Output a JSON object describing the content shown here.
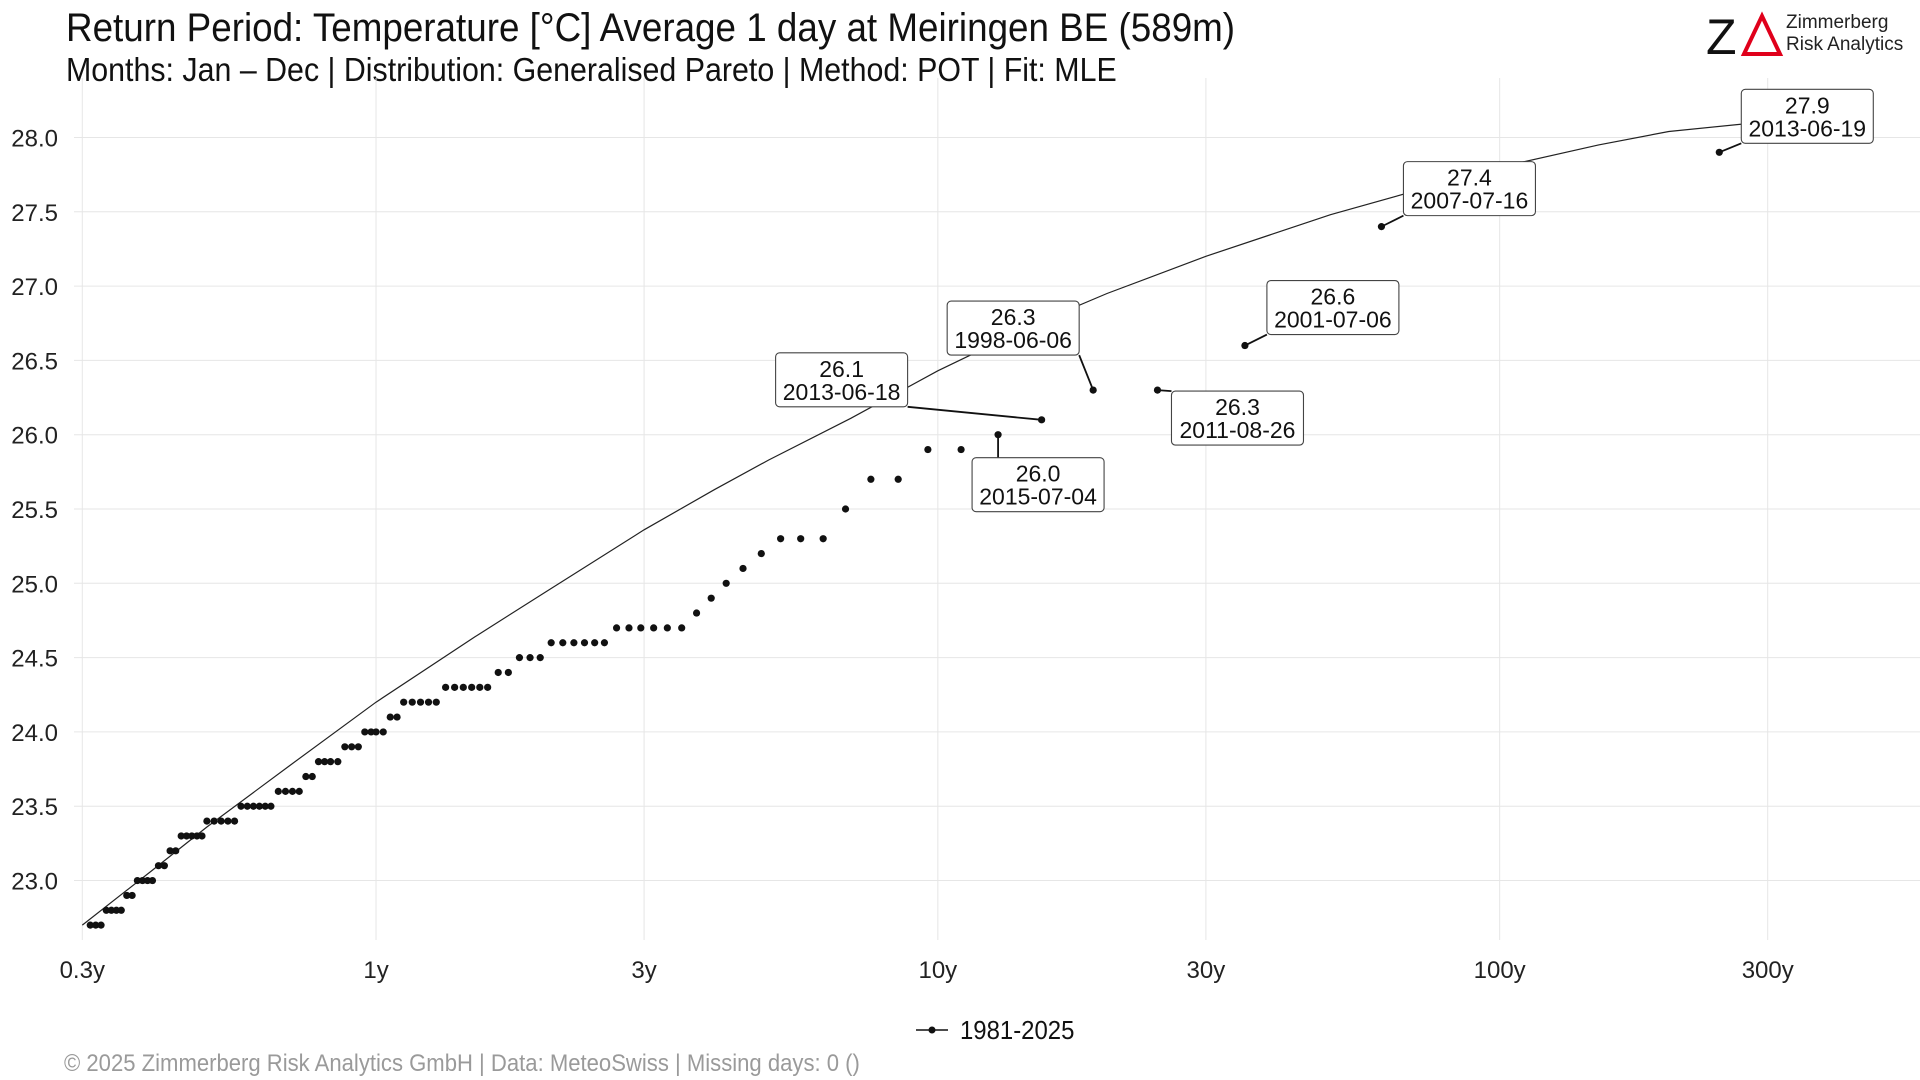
{
  "header": {
    "title": "Return Period: Temperature [°C] Average 1 day at Meiringen  BE (589m)",
    "subtitle": "Months: Jan – Dec | Distribution: Generalised Pareto | Method: POT | Fit: MLE"
  },
  "logo": {
    "mark": "ZΔ",
    "line1": "Zimmerberg",
    "line2": "Risk Analytics",
    "accent_color": "#e0001b"
  },
  "footer": {
    "text": "©  2025 Zimmerberg Risk Analytics GmbH | Data: MeteoSwiss | Missing days: 0 ()"
  },
  "legend": {
    "label": "1981-2025"
  },
  "chart_data": {
    "type": "scatter",
    "x_scale": "log",
    "xlim": [
      0.29,
      560
    ],
    "ylim": [
      22.6,
      28.4
    ],
    "grid": true,
    "legend_position": "bottom",
    "x_ticks": [
      {
        "value": 0.3,
        "label": "0.3y"
      },
      {
        "value": 1,
        "label": "1y"
      },
      {
        "value": 3,
        "label": "3y"
      },
      {
        "value": 10,
        "label": "10y"
      },
      {
        "value": 30,
        "label": "30y"
      },
      {
        "value": 100,
        "label": "100y"
      },
      {
        "value": 300,
        "label": "300y"
      }
    ],
    "y_ticks": [
      {
        "value": 23.0,
        "label": "23.0"
      },
      {
        "value": 23.5,
        "label": "23.5"
      },
      {
        "value": 24.0,
        "label": "24.0"
      },
      {
        "value": 24.5,
        "label": "24.5"
      },
      {
        "value": 25.0,
        "label": "25.0"
      },
      {
        "value": 25.5,
        "label": "25.5"
      },
      {
        "value": 26.0,
        "label": "26.0"
      },
      {
        "value": 26.5,
        "label": "26.5"
      },
      {
        "value": 27.0,
        "label": "27.0"
      },
      {
        "value": 27.5,
        "label": "27.5"
      },
      {
        "value": 28.0,
        "label": "28.0"
      }
    ],
    "fit_curve": [
      [
        0.3,
        22.7
      ],
      [
        0.4,
        23.07
      ],
      [
        0.5,
        23.36
      ],
      [
        0.7,
        23.77
      ],
      [
        1.0,
        24.2
      ],
      [
        1.5,
        24.64
      ],
      [
        2.0,
        24.94
      ],
      [
        3.0,
        25.36
      ],
      [
        4.0,
        25.63
      ],
      [
        5.0,
        25.83
      ],
      [
        7.0,
        26.11
      ],
      [
        10.0,
        26.43
      ],
      [
        15.0,
        26.75
      ],
      [
        20.0,
        26.95
      ],
      [
        30.0,
        27.2
      ],
      [
        50.0,
        27.48
      ],
      [
        100.0,
        27.8
      ],
      [
        150.0,
        27.95
      ],
      [
        200.0,
        28.04
      ],
      [
        270.0,
        28.09
      ]
    ],
    "series": [
      {
        "name": "1981-2025",
        "color": "#111111",
        "points": [
          [
            0.31,
            22.7
          ],
          [
            0.317,
            22.7
          ],
          [
            0.324,
            22.7
          ],
          [
            0.331,
            22.8
          ],
          [
            0.338,
            22.8
          ],
          [
            0.345,
            22.8
          ],
          [
            0.352,
            22.8
          ],
          [
            0.36,
            22.9
          ],
          [
            0.368,
            22.9
          ],
          [
            0.376,
            23.0
          ],
          [
            0.384,
            23.0
          ],
          [
            0.392,
            23.0
          ],
          [
            0.4,
            23.0
          ],
          [
            0.41,
            23.1
          ],
          [
            0.42,
            23.1
          ],
          [
            0.43,
            23.2
          ],
          [
            0.44,
            23.2
          ],
          [
            0.45,
            23.3
          ],
          [
            0.46,
            23.3
          ],
          [
            0.47,
            23.3
          ],
          [
            0.48,
            23.3
          ],
          [
            0.49,
            23.3
          ],
          [
            0.5,
            23.4
          ],
          [
            0.515,
            23.4
          ],
          [
            0.53,
            23.4
          ],
          [
            0.545,
            23.4
          ],
          [
            0.56,
            23.4
          ],
          [
            0.575,
            23.5
          ],
          [
            0.59,
            23.5
          ],
          [
            0.605,
            23.5
          ],
          [
            0.62,
            23.5
          ],
          [
            0.635,
            23.5
          ],
          [
            0.65,
            23.5
          ],
          [
            0.67,
            23.6
          ],
          [
            0.69,
            23.6
          ],
          [
            0.71,
            23.6
          ],
          [
            0.73,
            23.6
          ],
          [
            0.75,
            23.7
          ],
          [
            0.77,
            23.7
          ],
          [
            0.79,
            23.8
          ],
          [
            0.81,
            23.8
          ],
          [
            0.83,
            23.8
          ],
          [
            0.855,
            23.8
          ],
          [
            0.88,
            23.9
          ],
          [
            0.905,
            23.9
          ],
          [
            0.93,
            23.9
          ],
          [
            0.955,
            24.0
          ],
          [
            0.98,
            24.0
          ],
          [
            1.0,
            24.0
          ],
          [
            1.03,
            24.0
          ],
          [
            1.06,
            24.1
          ],
          [
            1.09,
            24.1
          ],
          [
            1.12,
            24.2
          ],
          [
            1.16,
            24.2
          ],
          [
            1.2,
            24.2
          ],
          [
            1.24,
            24.2
          ],
          [
            1.28,
            24.2
          ],
          [
            1.33,
            24.3
          ],
          [
            1.38,
            24.3
          ],
          [
            1.43,
            24.3
          ],
          [
            1.48,
            24.3
          ],
          [
            1.53,
            24.3
          ],
          [
            1.58,
            24.3
          ],
          [
            1.65,
            24.4
          ],
          [
            1.72,
            24.4
          ],
          [
            1.8,
            24.5
          ],
          [
            1.88,
            24.5
          ],
          [
            1.96,
            24.5
          ],
          [
            2.05,
            24.6
          ],
          [
            2.15,
            24.6
          ],
          [
            2.25,
            24.6
          ],
          [
            2.35,
            24.6
          ],
          [
            2.45,
            24.6
          ],
          [
            2.55,
            24.6
          ],
          [
            2.68,
            24.7
          ],
          [
            2.82,
            24.7
          ],
          [
            2.96,
            24.7
          ],
          [
            3.12,
            24.7
          ],
          [
            3.3,
            24.7
          ],
          [
            3.5,
            24.7
          ],
          [
            3.72,
            24.8
          ],
          [
            3.95,
            24.9
          ],
          [
            4.2,
            25.0
          ],
          [
            4.5,
            25.1
          ],
          [
            4.85,
            25.2
          ],
          [
            5.25,
            25.3
          ],
          [
            5.7,
            25.3
          ],
          [
            6.25,
            25.3
          ],
          [
            6.85,
            25.5
          ],
          [
            7.6,
            25.7
          ],
          [
            8.5,
            25.7
          ],
          [
            9.6,
            25.9
          ],
          [
            11.0,
            25.9
          ],
          [
            12.8,
            26.0
          ],
          [
            15.3,
            26.1
          ],
          [
            18.9,
            26.3
          ],
          [
            24.6,
            26.3
          ],
          [
            35.2,
            26.6
          ],
          [
            61.6,
            27.4
          ],
          [
            246.0,
            27.9
          ]
        ]
      }
    ],
    "annotations": [
      {
        "value": "26.1",
        "date": "2013-06-18",
        "x": 15.3,
        "y": 26.1
      },
      {
        "value": "26.0",
        "date": "2015-07-04",
        "x": 12.8,
        "y": 26.0
      },
      {
        "value": "26.3",
        "date": "1998-06-06",
        "x": 18.9,
        "y": 26.3
      },
      {
        "value": "26.3",
        "date": "2011-08-26",
        "x": 24.6,
        "y": 26.3
      },
      {
        "value": "26.6",
        "date": "2001-07-06",
        "x": 35.2,
        "y": 26.6
      },
      {
        "value": "27.4",
        "date": "2007-07-16",
        "x": 61.6,
        "y": 27.4
      },
      {
        "value": "27.9",
        "date": "2013-06-19",
        "x": 246.0,
        "y": 27.9
      }
    ]
  }
}
